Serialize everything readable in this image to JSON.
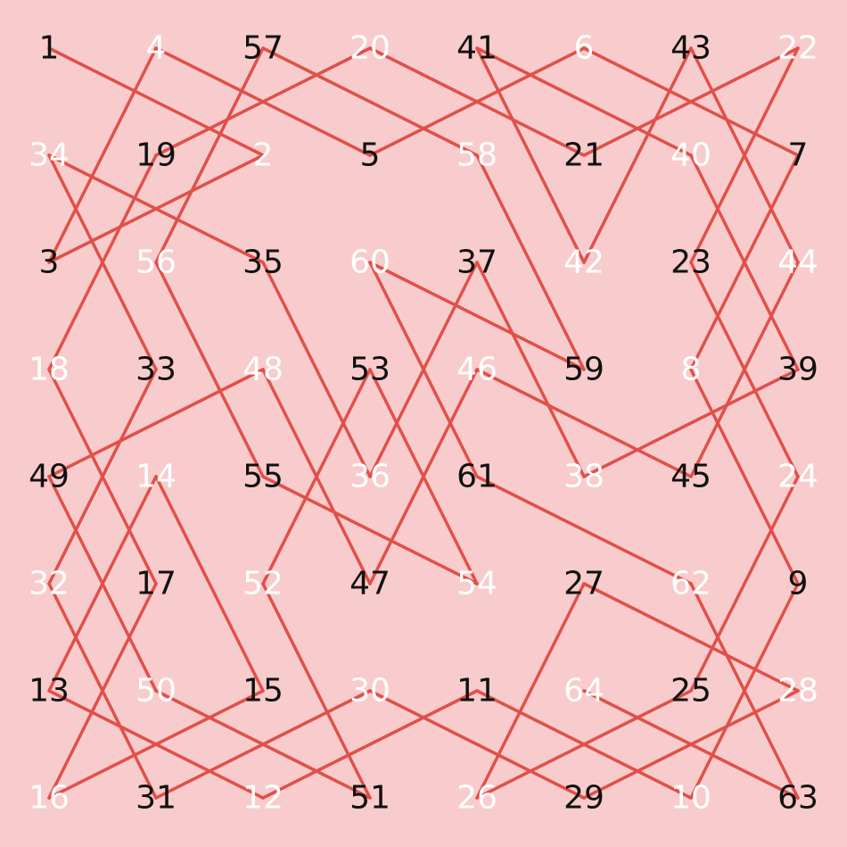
{
  "colors": {
    "background": "#f8cccc",
    "path": "#e0504a",
    "label_dark": "#111111",
    "label_light": "#ffffff"
  },
  "grid": {
    "rows": 8,
    "cols": 8,
    "cells": [
      [
        {
          "n": "1",
          "tone": "dark"
        },
        {
          "n": "4",
          "tone": "light"
        },
        {
          "n": "57",
          "tone": "dark"
        },
        {
          "n": "20",
          "tone": "light"
        },
        {
          "n": "41",
          "tone": "dark"
        },
        {
          "n": "6",
          "tone": "light"
        },
        {
          "n": "43",
          "tone": "dark"
        },
        {
          "n": "22",
          "tone": "light"
        }
      ],
      [
        {
          "n": "34",
          "tone": "light"
        },
        {
          "n": "19",
          "tone": "dark"
        },
        {
          "n": "2",
          "tone": "light"
        },
        {
          "n": "5",
          "tone": "dark"
        },
        {
          "n": "58",
          "tone": "light"
        },
        {
          "n": "21",
          "tone": "dark"
        },
        {
          "n": "40",
          "tone": "light"
        },
        {
          "n": "7",
          "tone": "dark"
        }
      ],
      [
        {
          "n": "3",
          "tone": "dark"
        },
        {
          "n": "56",
          "tone": "light"
        },
        {
          "n": "35",
          "tone": "dark"
        },
        {
          "n": "60",
          "tone": "light"
        },
        {
          "n": "37",
          "tone": "dark"
        },
        {
          "n": "42",
          "tone": "light"
        },
        {
          "n": "23",
          "tone": "dark"
        },
        {
          "n": "44",
          "tone": "light"
        }
      ],
      [
        {
          "n": "18",
          "tone": "light"
        },
        {
          "n": "33",
          "tone": "dark"
        },
        {
          "n": "48",
          "tone": "light"
        },
        {
          "n": "53",
          "tone": "dark"
        },
        {
          "n": "46",
          "tone": "light"
        },
        {
          "n": "59",
          "tone": "dark"
        },
        {
          "n": "8",
          "tone": "light"
        },
        {
          "n": "39",
          "tone": "dark"
        }
      ],
      [
        {
          "n": "49",
          "tone": "dark"
        },
        {
          "n": "14",
          "tone": "light"
        },
        {
          "n": "55",
          "tone": "dark"
        },
        {
          "n": "36",
          "tone": "light"
        },
        {
          "n": "61",
          "tone": "dark"
        },
        {
          "n": "38",
          "tone": "light"
        },
        {
          "n": "45",
          "tone": "dark"
        },
        {
          "n": "24",
          "tone": "light"
        }
      ],
      [
        {
          "n": "32",
          "tone": "light"
        },
        {
          "n": "17",
          "tone": "dark"
        },
        {
          "n": "52",
          "tone": "light"
        },
        {
          "n": "47",
          "tone": "dark"
        },
        {
          "n": "54",
          "tone": "light"
        },
        {
          "n": "27",
          "tone": "dark"
        },
        {
          "n": "62",
          "tone": "light"
        },
        {
          "n": "9",
          "tone": "dark"
        }
      ],
      [
        {
          "n": "13",
          "tone": "dark"
        },
        {
          "n": "50",
          "tone": "light"
        },
        {
          "n": "15",
          "tone": "dark"
        },
        {
          "n": "30",
          "tone": "light"
        },
        {
          "n": "11",
          "tone": "dark"
        },
        {
          "n": "64",
          "tone": "light"
        },
        {
          "n": "25",
          "tone": "dark"
        },
        {
          "n": "28",
          "tone": "light"
        }
      ],
      [
        {
          "n": "16",
          "tone": "light"
        },
        {
          "n": "31",
          "tone": "dark"
        },
        {
          "n": "12",
          "tone": "light"
        },
        {
          "n": "51",
          "tone": "dark"
        },
        {
          "n": "26",
          "tone": "light"
        },
        {
          "n": "29",
          "tone": "dark"
        },
        {
          "n": "10",
          "tone": "light"
        },
        {
          "n": "63",
          "tone": "dark"
        }
      ]
    ]
  }
}
